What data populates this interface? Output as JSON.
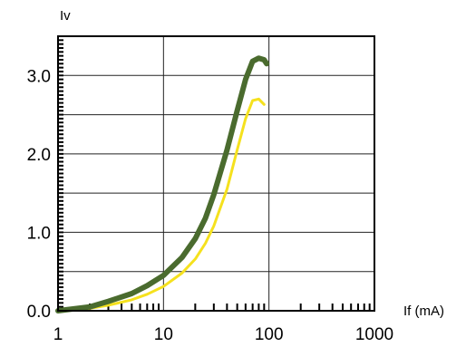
{
  "chart_data": {
    "type": "line",
    "title": "",
    "xlabel": "If (mA)",
    "ylabel": "Iv",
    "x_scale": "log",
    "xlim": [
      1,
      1000
    ],
    "ylim": [
      0,
      3.5
    ],
    "grid": true,
    "x_tick_labels": [
      "1",
      "10",
      "100",
      "1000"
    ],
    "x_tick_values": [
      1,
      10,
      100,
      1000
    ],
    "y_tick_labels": [
      "0.0",
      "1.0",
      "2.0",
      "3.0"
    ],
    "y_tick_values": [
      0,
      1,
      2,
      3
    ],
    "series": [
      {
        "color": "#4a6b2e",
        "x": [
          1,
          2,
          3,
          5,
          7,
          10,
          15,
          20,
          25,
          30,
          40,
          50,
          60,
          70,
          80,
          90,
          95
        ],
        "y": [
          0.0,
          0.05,
          0.12,
          0.22,
          0.32,
          0.45,
          0.68,
          0.92,
          1.18,
          1.48,
          2.05,
          2.55,
          2.95,
          3.18,
          3.22,
          3.2,
          3.15
        ]
      },
      {
        "color": "#f5e11e",
        "x": [
          1,
          2,
          3,
          5,
          7,
          10,
          15,
          20,
          25,
          30,
          40,
          50,
          60,
          70,
          80,
          90
        ],
        "y": [
          0.0,
          0.03,
          0.07,
          0.14,
          0.21,
          0.31,
          0.48,
          0.66,
          0.86,
          1.08,
          1.55,
          2.05,
          2.45,
          2.68,
          2.7,
          2.63
        ]
      }
    ]
  }
}
